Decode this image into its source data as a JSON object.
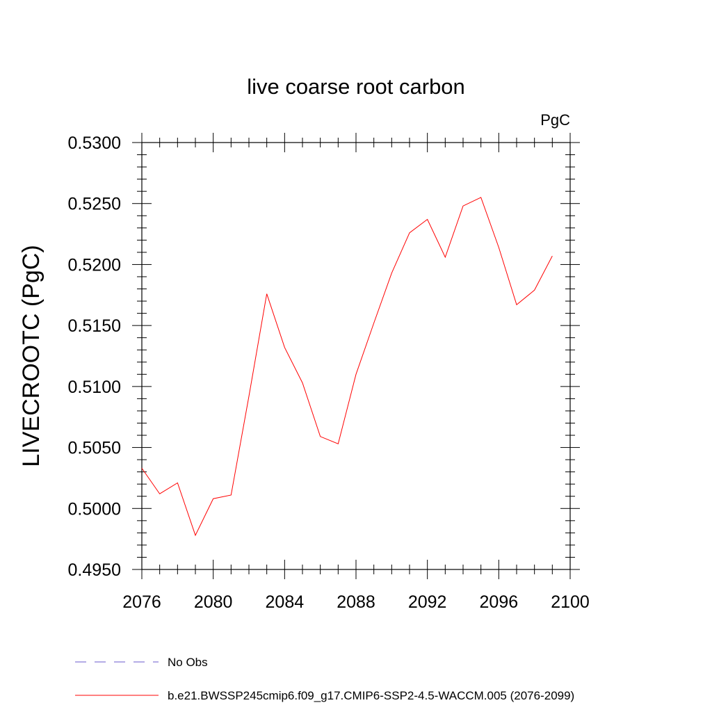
{
  "chart_data": {
    "type": "line",
    "title": "live coarse root carbon",
    "units_label": "PgC",
    "xlabel": "",
    "ylabel": "LIVECROOTC  (PgC)",
    "xlim": [
      2076,
      2100
    ],
    "ylim": [
      0.495,
      0.53
    ],
    "x_ticks": [
      2076,
      2080,
      2084,
      2088,
      2092,
      2096,
      2100
    ],
    "y_ticks": [
      0.495,
      0.5,
      0.505,
      0.51,
      0.515,
      0.52,
      0.525,
      0.53
    ],
    "y_tick_labels": [
      "0.4950",
      "0.5000",
      "0.5050",
      "0.5100",
      "0.5150",
      "0.5200",
      "0.5250",
      "0.5300"
    ],
    "grid": false,
    "legend_position": "bottom",
    "series": [
      {
        "name": "b.e21.BWSSP245cmip6.f09_g17.CMIP6-SSP2-4.5-WACCM.005 (2076-2099)",
        "color": "#ff0000",
        "x": [
          2076,
          2077,
          2078,
          2079,
          2080,
          2081,
          2082,
          2083,
          2084,
          2085,
          2086,
          2087,
          2088,
          2089,
          2090,
          2091,
          2092,
          2093,
          2094,
          2095,
          2096,
          2097,
          2098,
          2099
        ],
        "values": [
          0.5033,
          0.5012,
          0.5021,
          0.4978,
          0.5008,
          0.5011,
          0.5092,
          0.5176,
          0.5132,
          0.5103,
          0.5059,
          0.5053,
          0.511,
          0.5152,
          0.5193,
          0.5226,
          0.5237,
          0.5206,
          0.5248,
          0.5255,
          0.5214,
          0.5167,
          0.5179,
          0.5207
        ]
      }
    ],
    "legend": [
      {
        "label": "No Obs",
        "color": "#6a5acd",
        "dash": "dashed"
      },
      {
        "label": "b.e21.BWSSP245cmip6.f09_g17.CMIP6-SSP2-4.5-WACCM.005 (2076-2099)",
        "color": "#ff0000",
        "dash": "solid"
      }
    ]
  }
}
